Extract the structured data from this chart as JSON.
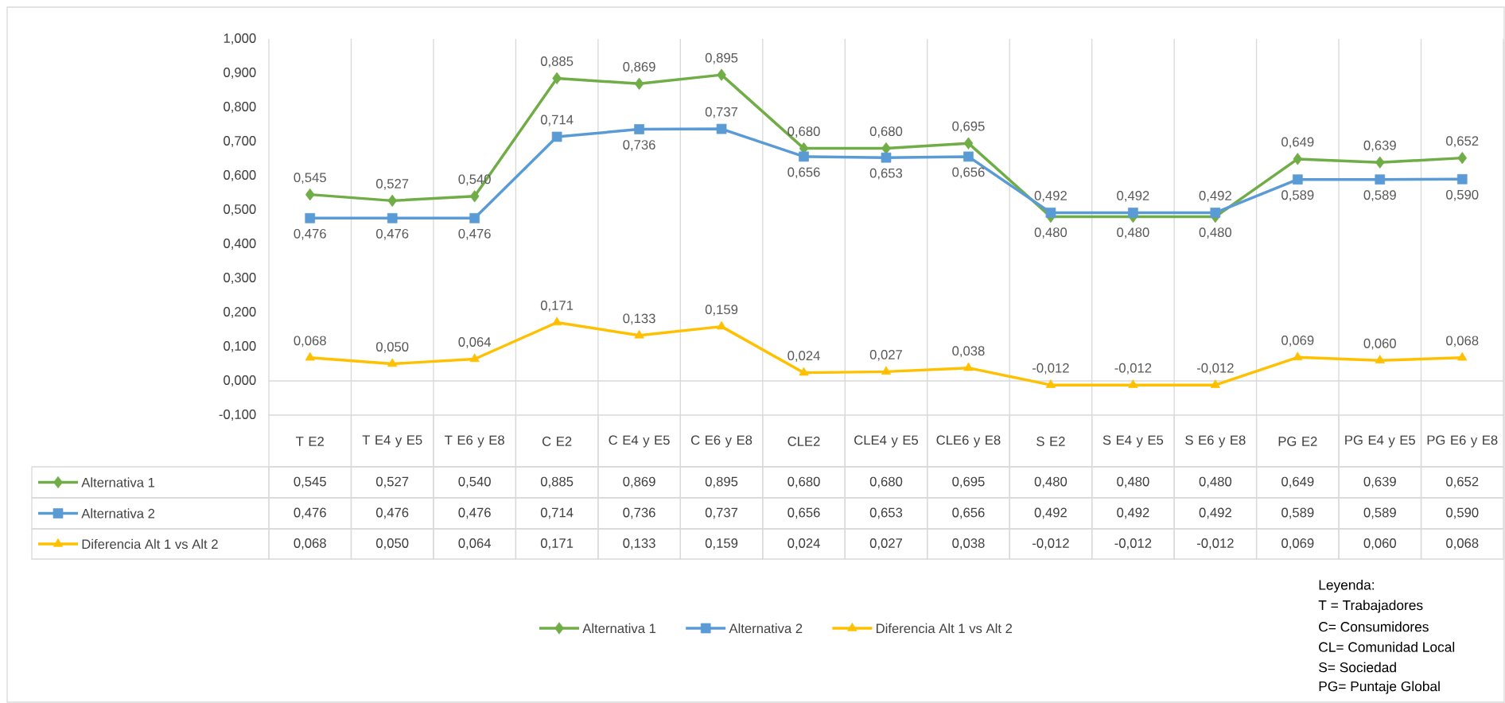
{
  "chart_data": {
    "type": "line",
    "categories": [
      "T  E2",
      "T E4 y E5",
      "T  E6 y E8",
      "C  E2",
      "C  E4 y E5",
      "C  E6 y E8",
      "CLE2",
      "CLE4 y E5",
      "CLE6 y E8",
      "S   E2",
      "S E4 y E5",
      "S E6 y E8",
      "PG  E2",
      "PG E4 y E5",
      "PG E6 y E8"
    ],
    "series": [
      {
        "name": "Alternativa 1",
        "color": "#70ad47",
        "marker": "diamond",
        "values": [
          0.545,
          0.527,
          0.54,
          0.885,
          0.869,
          0.895,
          0.68,
          0.68,
          0.695,
          0.48,
          0.48,
          0.48,
          0.649,
          0.639,
          0.652
        ],
        "value_labels": [
          "0,545",
          "0,527",
          "0,540",
          "0,885",
          "0,869",
          "0,895",
          "0,680",
          "0,680",
          "0,695",
          "0,480",
          "0,480",
          "0,480",
          "0,649",
          "0,639",
          "0,652"
        ]
      },
      {
        "name": "Alternativa 2",
        "color": "#5b9bd5",
        "marker": "square",
        "values": [
          0.476,
          0.476,
          0.476,
          0.714,
          0.736,
          0.737,
          0.656,
          0.653,
          0.656,
          0.492,
          0.492,
          0.492,
          0.589,
          0.589,
          0.59
        ],
        "value_labels": [
          "0,476",
          "0,476",
          "0,476",
          "0,714",
          "0,736",
          "0,737",
          "0,656",
          "0,653",
          "0,656",
          "0,492",
          "0,492",
          "0,492",
          "0,589",
          "0,589",
          "0,590"
        ]
      },
      {
        "name": "Diferencia Alt 1 vs Alt 2",
        "color": "#ffc000",
        "marker": "triangle",
        "values": [
          0.068,
          0.05,
          0.064,
          0.171,
          0.133,
          0.159,
          0.024,
          0.027,
          0.038,
          -0.012,
          -0.012,
          -0.012,
          0.069,
          0.06,
          0.068
        ],
        "value_labels": [
          "0,068",
          "0,050",
          "0,064",
          "0,171",
          "0,133",
          "0,159",
          "0,024",
          "0,027",
          "0,038",
          "-0,012",
          "-0,012",
          "-0,012",
          "0,069",
          "0,060",
          "0,068"
        ]
      }
    ],
    "ylim": [
      -0.1,
      1.0
    ],
    "yticks": [
      {
        "value": -0.1,
        "label": "-0,100"
      },
      {
        "value": 0,
        "label": "0,000"
      },
      {
        "value": 0.1,
        "label": "0,100"
      },
      {
        "value": 0.2,
        "label": "0,200"
      },
      {
        "value": 0.3,
        "label": "0,300"
      },
      {
        "value": 0.4,
        "label": "0,400"
      },
      {
        "value": 0.5,
        "label": "0,500"
      },
      {
        "value": 0.6,
        "label": "0,600"
      },
      {
        "value": 0.7,
        "label": "0,700"
      },
      {
        "value": 0.8,
        "label": "0,800"
      },
      {
        "value": 0.9,
        "label": "0,900"
      },
      {
        "value": 1.0,
        "label": "1,000"
      }
    ],
    "grid": "x",
    "ref_lines": [
      {
        "axis": "y",
        "value": 0,
        "color": "#d9d9d9"
      }
    ],
    "legend": "bottom",
    "annotations": [
      "Leyenda:",
      "T = Trabajadores",
      "C= Consumidores",
      "CL= Comunidad Local",
      "S= Sociedad",
      "PG= Puntaje Global"
    ]
  }
}
